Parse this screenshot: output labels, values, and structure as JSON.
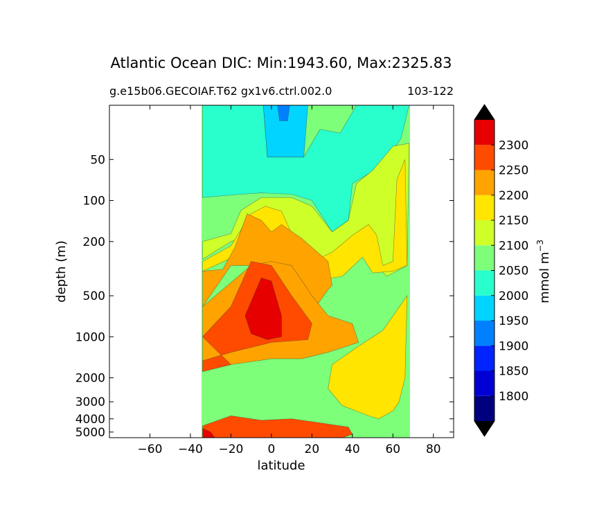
{
  "chart_data": {
    "type": "contourf",
    "title": "Atlantic Ocean DIC: Min:1943.60, Max:2325.83",
    "subtitle_left": "g.e15b06.GECOIAF.T62 gx1v6.ctrl.002.0",
    "subtitle_right": "103-122",
    "xlabel": "latitude",
    "ylabel": "depth (m)",
    "xlim": [
      -80,
      90
    ],
    "ylim": [
      5500,
      20
    ],
    "yscale": "log",
    "xticks": [
      -60,
      -40,
      -20,
      0,
      20,
      40,
      60,
      80
    ],
    "xtick_labels": [
      "−60",
      "−40",
      "−20",
      "0",
      "20",
      "40",
      "60",
      "80"
    ],
    "yticks": [
      50,
      100,
      200,
      500,
      1000,
      2000,
      3000,
      4000,
      5000
    ],
    "ytick_labels": [
      "50",
      "100",
      "200",
      "500",
      "1000",
      "2000",
      "3000",
      "4000",
      "5000"
    ],
    "colorbar": {
      "label": "mmol m",
      "label_sup": "−3",
      "levels": [
        1750,
        1800,
        1850,
        1900,
        1950,
        2000,
        2050,
        2100,
        2150,
        2200,
        2250,
        2300,
        2350
      ],
      "tick_values": [
        1800,
        1850,
        1900,
        1950,
        2000,
        2050,
        2100,
        2150,
        2200,
        2250,
        2300
      ],
      "tick_labels": [
        "1800",
        "1850",
        "1900",
        "1950",
        "2000",
        "2050",
        "2100",
        "2150",
        "2200",
        "2250",
        "2300"
      ],
      "colors": [
        "#00007f",
        "#0000d4",
        "#0024ff",
        "#0080ff",
        "#00d4ff",
        "#29ffcd",
        "#7dff7a",
        "#ceff29",
        "#ffe500",
        "#ffa300",
        "#ff4b00",
        "#e60000",
        "#7f0000"
      ],
      "extend": "both"
    },
    "regions": [
      {
        "level": "2000-2050",
        "polygon": [
          [
            -34,
            20
          ],
          [
            -4,
            20
          ],
          [
            -2,
            48
          ],
          [
            16,
            48
          ],
          [
            24,
            30
          ],
          [
            34,
            32
          ],
          [
            42,
            20
          ],
          [
            68,
            20
          ],
          [
            64,
            35
          ],
          [
            55,
            55
          ],
          [
            40,
            75
          ],
          [
            38,
            140
          ],
          [
            30,
            170
          ],
          [
            20,
            100
          ],
          [
            10,
            90
          ],
          [
            -5,
            88
          ],
          [
            -15,
            90
          ],
          [
            -34,
            95
          ]
        ]
      },
      {
        "level": "1950-2000",
        "polygon": [
          [
            -4,
            20
          ],
          [
            18,
            20
          ],
          [
            16,
            48
          ],
          [
            -2,
            48
          ]
        ]
      },
      {
        "level": "1900-1950",
        "polygon": [
          [
            3,
            20
          ],
          [
            9,
            20
          ],
          [
            8,
            26
          ],
          [
            4,
            26
          ]
        ]
      },
      {
        "level": "2100-2150",
        "polygon": [
          [
            -34,
            200
          ],
          [
            -20,
            175
          ],
          [
            -15,
            118
          ],
          [
            -5,
            95
          ],
          [
            10,
            95
          ],
          [
            20,
            110
          ],
          [
            30,
            170
          ],
          [
            38,
            140
          ],
          [
            42,
            75
          ],
          [
            50,
            60
          ],
          [
            60,
            40
          ],
          [
            68,
            38
          ],
          [
            67,
            300
          ],
          [
            57,
            360
          ],
          [
            45,
            240
          ],
          [
            30,
            250
          ],
          [
            20,
            300
          ],
          [
            10,
            250
          ],
          [
            0,
            190
          ],
          [
            -10,
            180
          ],
          [
            -20,
            200
          ],
          [
            -34,
            270
          ]
        ]
      },
      {
        "level": "2150-2200",
        "polygon": [
          [
            -34,
            280
          ],
          [
            -20,
            215
          ],
          [
            -10,
            125
          ],
          [
            -3,
            110
          ],
          [
            5,
            120
          ],
          [
            10,
            175
          ],
          [
            20,
            280
          ],
          [
            30,
            240
          ],
          [
            40,
            180
          ],
          [
            48,
            150
          ],
          [
            52,
            180
          ],
          [
            55,
            300
          ],
          [
            60,
            280
          ],
          [
            62,
            70
          ],
          [
            66,
            50
          ],
          [
            67,
            300
          ],
          [
            60,
            330
          ],
          [
            50,
            340
          ],
          [
            45,
            260
          ],
          [
            35,
            360
          ],
          [
            25,
            380
          ],
          [
            15,
            330
          ],
          [
            5,
            260
          ],
          [
            -5,
            240
          ],
          [
            -15,
            245
          ],
          [
            -34,
            330
          ]
        ]
      },
      {
        "level": "2200-2250",
        "polygon": [
          [
            -34,
            330
          ],
          [
            -24,
            320
          ],
          [
            -18,
            220
          ],
          [
            -12,
            125
          ],
          [
            -5,
            140
          ],
          [
            0,
            170
          ],
          [
            5,
            150
          ],
          [
            15,
            190
          ],
          [
            28,
            280
          ],
          [
            30,
            420
          ],
          [
            28,
            450
          ],
          [
            22,
            600
          ],
          [
            10,
            700
          ],
          [
            -10,
            300
          ],
          [
            -20,
            300
          ],
          [
            -34,
            600
          ]
        ]
      },
      {
        "level": "2200-2250",
        "polygon": [
          [
            -34,
            600
          ],
          [
            -10,
            300
          ],
          [
            0,
            280
          ],
          [
            10,
            300
          ],
          [
            20,
            500
          ],
          [
            28,
            700
          ],
          [
            40,
            800
          ],
          [
            43,
            1100
          ],
          [
            28,
            1300
          ],
          [
            15,
            1450
          ],
          [
            0,
            1450
          ],
          [
            -20,
            1600
          ],
          [
            -34,
            1800
          ]
        ]
      },
      {
        "level": "2250-2300",
        "polygon": [
          [
            -34,
            1800
          ],
          [
            -20,
            1600
          ],
          [
            -34,
            1000
          ],
          [
            -20,
            600
          ],
          [
            -10,
            280
          ],
          [
            0,
            300
          ],
          [
            10,
            500
          ],
          [
            20,
            800
          ],
          [
            18,
            1050
          ],
          [
            0,
            1100
          ],
          [
            -20,
            1300
          ],
          [
            -34,
            1500
          ]
        ]
      },
      {
        "level": "2250-2300",
        "polygon": [
          [
            -34,
            4500
          ],
          [
            -20,
            3800
          ],
          [
            -5,
            4100
          ],
          [
            10,
            4000
          ],
          [
            25,
            4300
          ],
          [
            38,
            4600
          ],
          [
            40,
            5200
          ],
          [
            35,
            5500
          ],
          [
            -34,
            5500
          ]
        ]
      },
      {
        "level": "2300-2350",
        "polygon": [
          [
            -13,
            700
          ],
          [
            -5,
            370
          ],
          [
            0,
            390
          ],
          [
            5,
            700
          ],
          [
            5,
            1000
          ],
          [
            -2,
            1050
          ],
          [
            -10,
            950
          ]
        ]
      },
      {
        "level": "2300-2350",
        "polygon": [
          [
            -34,
            4700
          ],
          [
            -30,
            5000
          ],
          [
            -28,
            5500
          ],
          [
            -34,
            5500
          ]
        ]
      },
      {
        "level": "2150-2200",
        "polygon": [
          [
            42,
            1200
          ],
          [
            55,
            900
          ],
          [
            67,
            500
          ],
          [
            66,
            2000
          ],
          [
            63,
            3000
          ],
          [
            60,
            3500
          ],
          [
            53,
            4000
          ],
          [
            48,
            3800
          ],
          [
            35,
            3200
          ],
          [
            28,
            2400
          ],
          [
            30,
            1600
          ]
        ]
      }
    ]
  }
}
